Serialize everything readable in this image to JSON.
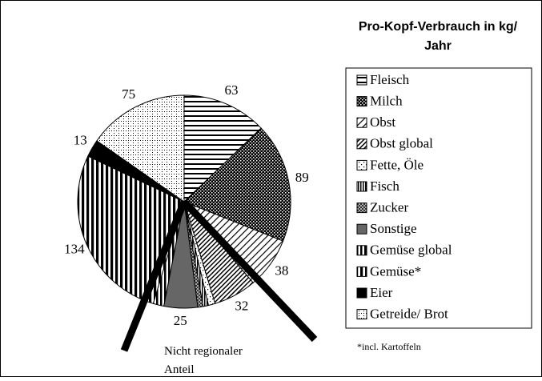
{
  "chart_data": {
    "type": "pie",
    "title": "Pro-Kopf-Verbrauch in kg/ Jahr",
    "categories": [
      "Fleisch",
      "Milch",
      "Obst",
      "Obst global",
      "Fette, Öle",
      "Fisch",
      "Zucker",
      "Sonstige",
      "Gemüse global",
      "Gemüse*",
      "Eier",
      "Getreide/ Brot"
    ],
    "values": [
      63,
      89,
      38,
      32,
      5,
      4,
      4,
      25,
      8,
      134,
      13,
      75
    ],
    "value_labels": [
      "63",
      "89",
      "38",
      "32",
      null,
      null,
      null,
      "25",
      null,
      "134",
      "13",
      "75"
    ],
    "annotation": "Nicht regionaler Anteil",
    "note": "*incl. Kartoffeln",
    "legend": "right"
  }
}
